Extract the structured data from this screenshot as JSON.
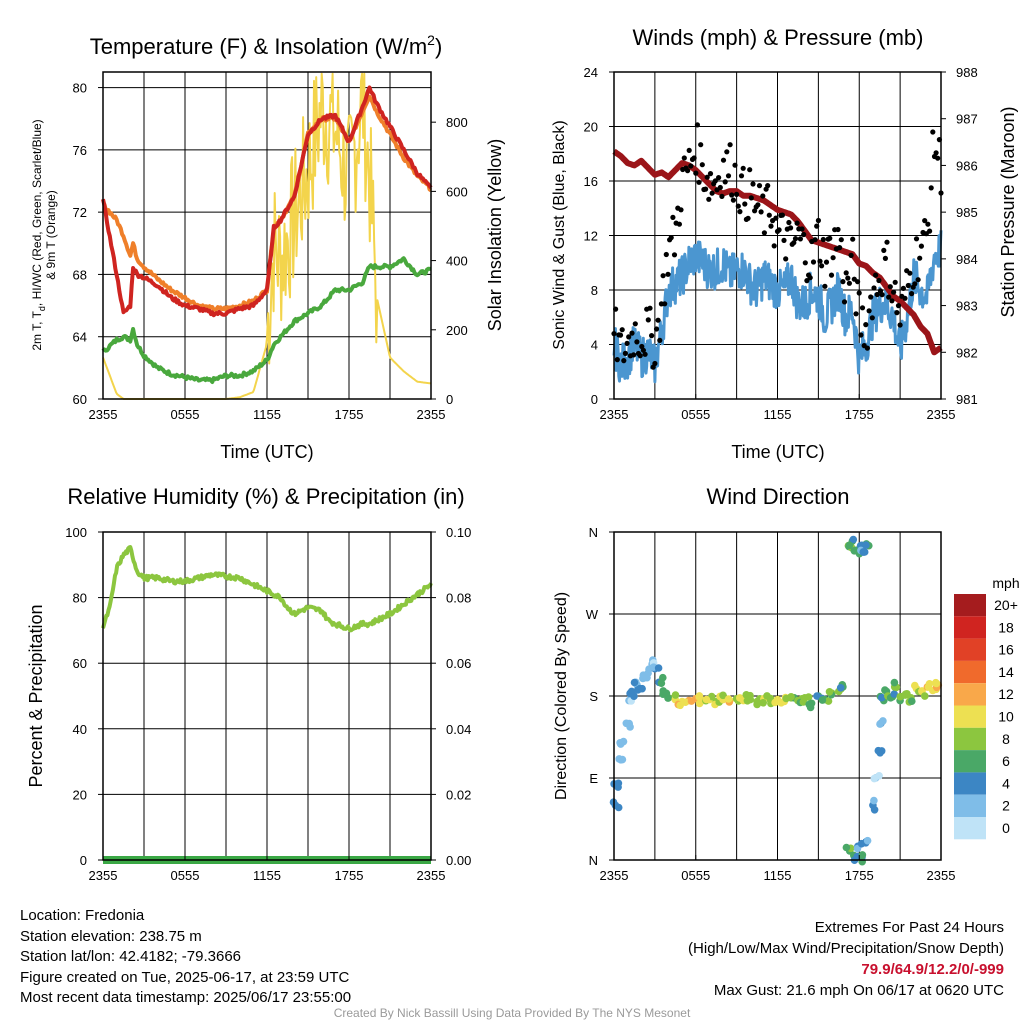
{
  "colors": {
    "temperature": "#cf2420",
    "dewpoint": "#49a83d",
    "temp_9m": "#ef7f2a",
    "insolation": "#f3d44c",
    "wind": "#4b96d0",
    "gust": "#000000",
    "pressure": "#9b1519",
    "humidity": "#8cc63f",
    "precip": "#3aa845"
  },
  "chart_data": [
    {
      "id": "temp",
      "type": "line",
      "title": "Temperature (F) & Insolation (W/m",
      "title_sup": "2",
      "title_end": ")",
      "xlabel": "Time (UTC)",
      "ylabel_line1": "2m T, T",
      "ylabel_sub": "d",
      "ylabel_line1_end": ", HI/WC (Red, Green, Scarlet/Blue)",
      "ylabel_line2": "& 9m T (Orange)",
      "ylabel_right": "Solar Insolation (Yellow)",
      "x_ticks": [
        "2355",
        "0555",
        "1155",
        "1755",
        "2355"
      ],
      "ylim": [
        60,
        81
      ],
      "y_ticks": [
        "60",
        "64",
        "68",
        "72",
        "76",
        "80"
      ],
      "ylim_right": [
        0,
        945
      ],
      "y_ticks_right": [
        "0",
        "200",
        "400",
        "600",
        "800"
      ],
      "x_hours": [
        0,
        1,
        1.5,
        2,
        2.2,
        2.5,
        3,
        4,
        5,
        6,
        7,
        8,
        9,
        10,
        11,
        12,
        12.5,
        13,
        14,
        15,
        16,
        17,
        18,
        19,
        19.5,
        20,
        21,
        22,
        23,
        24
      ],
      "series": [
        {
          "key": "temperature",
          "axis": "left",
          "values": [
            72.8,
            68,
            65.5,
            66,
            68.5,
            68,
            67.8,
            67.3,
            66.5,
            66,
            65.8,
            65.5,
            65.5,
            65.8,
            66,
            67,
            71,
            71.5,
            73,
            77,
            78,
            78.2,
            76.5,
            78.8,
            80,
            79,
            77.5,
            76,
            74.5,
            73.5
          ]
        },
        {
          "key": "dewpoint",
          "axis": "left",
          "values": [
            63,
            63.8,
            64,
            63.8,
            64.5,
            63.5,
            62.8,
            62,
            61.6,
            61.4,
            61.2,
            61.2,
            61.5,
            61.5,
            61.8,
            62.5,
            63.5,
            64,
            65,
            65.5,
            66,
            67,
            67,
            67.5,
            68.5,
            68.5,
            68.5,
            69,
            68,
            68.3
          ]
        },
        {
          "key": "temp_9m",
          "axis": "left",
          "values": [
            72.5,
            71.5,
            70.5,
            69.2,
            70,
            69,
            68.5,
            67.7,
            67,
            66.5,
            66,
            65.8,
            65.8,
            66,
            66.3,
            67,
            71,
            71.5,
            73,
            77,
            78,
            78,
            76.5,
            78.5,
            79.5,
            78.5,
            77,
            75.5,
            74.3,
            73.5
          ]
        },
        {
          "key": "insolation",
          "axis": "right",
          "values": [
            120,
            15,
            0,
            0,
            0,
            0,
            0,
            0,
            0,
            0,
            0,
            0,
            0,
            5,
            20,
            160,
            420,
            380,
            500,
            640,
            820,
            760,
            600,
            850,
            620,
            300,
            120,
            80,
            50,
            45
          ]
        }
      ]
    },
    {
      "id": "winds",
      "type": "line",
      "title": "Winds (mph) & Pressure (mb)",
      "xlabel": "Time (UTC)",
      "ylabel": "Sonic Wind & Gust (Blue, Black)",
      "ylabel_right": "Station Pressure (Maroon)",
      "x_ticks": [
        "2355",
        "0555",
        "1155",
        "1755",
        "2355"
      ],
      "ylim": [
        0,
        24
      ],
      "y_ticks": [
        "0",
        "4",
        "8",
        "12",
        "16",
        "20",
        "24"
      ],
      "ylim_right": [
        981,
        988
      ],
      "y_ticks_right": [
        "981",
        "982",
        "983",
        "984",
        "985",
        "986",
        "987",
        "988"
      ],
      "x_hours": [
        0,
        0.5,
        1,
        1.5,
        2,
        2.5,
        3,
        3.5,
        4,
        4.5,
        5,
        5.5,
        6,
        6.5,
        7,
        7.5,
        8,
        8.5,
        9,
        9.5,
        10,
        10.5,
        11,
        11.5,
        12,
        12.5,
        13,
        13.5,
        14,
        14.5,
        15,
        15.5,
        16,
        16.5,
        17,
        17.5,
        18,
        18.5,
        19,
        19.5,
        20,
        20.5,
        21,
        21.5,
        22,
        22.5,
        23,
        23.5,
        24
      ],
      "series": [
        {
          "key": "wind",
          "name": "Sonic Wind",
          "values": [
            4,
            2.5,
            3,
            4,
            3,
            3.5,
            2.5,
            5,
            8,
            8.5,
            9,
            10,
            10.5,
            10,
            9.5,
            9.5,
            10,
            9,
            9.5,
            9.5,
            8.5,
            8,
            9,
            8.5,
            8,
            8,
            9,
            7,
            7,
            8,
            7.5,
            6,
            7,
            8,
            6,
            6.5,
            3,
            4,
            6,
            7,
            7,
            6,
            3.5,
            6,
            9,
            8,
            7.5,
            10.5,
            11
          ]
        },
        {
          "key": "gust",
          "name": "Gust",
          "values": [
            5,
            3.5,
            4,
            5,
            4.5,
            5,
            4,
            7,
            11,
            12,
            16,
            17,
            18.5,
            17,
            16,
            16,
            17,
            17,
            16,
            15,
            15,
            14,
            13.5,
            14,
            12,
            12,
            11,
            12,
            11,
            10,
            12,
            10,
            11,
            12,
            8,
            10,
            6,
            5,
            8,
            9,
            10,
            8,
            6,
            8,
            10,
            11,
            12,
            19,
            17
          ]
        },
        {
          "key": "pressure",
          "name": "Pressure",
          "axis": "right",
          "values": [
            986.3,
            986.2,
            986.05,
            986.0,
            986.1,
            985.95,
            985.8,
            985.85,
            985.75,
            985.9,
            986.05,
            986.0,
            985.9,
            985.75,
            985.6,
            985.45,
            985.4,
            985.45,
            985.45,
            985.35,
            985.35,
            985.3,
            985.25,
            985.15,
            985.05,
            985.0,
            984.95,
            984.8,
            984.6,
            984.4,
            984.35,
            984.3,
            984.25,
            984.2,
            984.15,
            984.1,
            983.9,
            983.85,
            983.7,
            983.6,
            983.4,
            983.2,
            983.1,
            982.95,
            982.8,
            982.55,
            982.4,
            982.0,
            982.1
          ]
        }
      ]
    },
    {
      "id": "rh",
      "type": "line",
      "title": "Relative Humidity (%) & Precipitation (in)",
      "ylabel": "Percent & Precipitation",
      "x_ticks": [
        "2355",
        "0555",
        "1155",
        "1755",
        "2355"
      ],
      "ylim": [
        0,
        100
      ],
      "y_ticks": [
        "0",
        "20",
        "40",
        "60",
        "80",
        "100"
      ],
      "ylim_right": [
        0,
        0.1
      ],
      "y_ticks_right": [
        "0.00",
        "0.02",
        "0.04",
        "0.06",
        "0.08",
        "0.10"
      ],
      "x_hours": [
        0,
        0.5,
        1,
        1.5,
        2,
        2.5,
        3,
        4,
        5,
        6,
        7,
        8,
        9,
        10,
        11,
        12,
        13,
        13.5,
        14,
        15,
        16,
        16.5,
        17,
        18,
        19,
        19.5,
        20,
        21,
        22,
        23,
        24
      ],
      "series": [
        {
          "key": "humidity",
          "name": "Relative Humidity",
          "values": [
            71,
            77,
            89,
            93,
            95,
            88,
            86,
            86,
            85,
            85,
            86,
            87,
            86.5,
            86,
            84,
            82,
            80,
            77,
            75,
            77,
            76,
            73,
            72,
            70.5,
            72,
            72,
            73,
            75,
            78,
            81,
            84
          ]
        },
        {
          "key": "precip",
          "name": "Precipitation",
          "axis": "right",
          "values": [
            0,
            0,
            0,
            0,
            0,
            0,
            0,
            0,
            0,
            0,
            0,
            0,
            0,
            0,
            0,
            0,
            0,
            0,
            0,
            0,
            0,
            0,
            0,
            0,
            0,
            0,
            0,
            0,
            0,
            0,
            0
          ]
        }
      ]
    },
    {
      "id": "wdir",
      "type": "scatter",
      "title": "Wind Direction",
      "ylabel": "Direction (Colored By Speed)",
      "x_ticks": [
        "2355",
        "0555",
        "1155",
        "1755",
        "2355"
      ],
      "y_ticks": [
        "N",
        "E",
        "S",
        "W",
        "N"
      ],
      "ylim": [
        0,
        360
      ],
      "colorbar_title": "mph",
      "colorbar_labels": [
        "20+",
        "18",
        "16",
        "14",
        "12",
        "10",
        "8",
        "6",
        "4",
        "2",
        "0"
      ],
      "colorbar_colors": [
        "#a51c1e",
        "#d02420",
        "#e14126",
        "#f06a2c",
        "#f9a84a",
        "#ede052",
        "#8cc63f",
        "#4aa867",
        "#3c86c4",
        "#7fbde8",
        "#bfe3f7"
      ],
      "points": [
        {
          "t": 0.1,
          "dir": 60,
          "spd": 3
        },
        {
          "t": 0.3,
          "dir": 80,
          "spd": 3
        },
        {
          "t": 0.5,
          "dir": 110,
          "spd": 2
        },
        {
          "t": 0.7,
          "dir": 130,
          "spd": 2
        },
        {
          "t": 0.9,
          "dir": 150,
          "spd": 2
        },
        {
          "t": 1.1,
          "dir": 175,
          "spd": 2
        },
        {
          "t": 1.3,
          "dir": 185,
          "spd": 3
        },
        {
          "t": 1.6,
          "dir": 195,
          "spd": 2
        },
        {
          "t": 1.9,
          "dir": 188,
          "spd": 3
        },
        {
          "t": 2.2,
          "dir": 200,
          "spd": 2
        },
        {
          "t": 2.5,
          "dir": 205,
          "spd": 2
        },
        {
          "t": 2.8,
          "dir": 215,
          "spd": 2
        },
        {
          "t": 3.0,
          "dir": 210,
          "spd": 3
        },
        {
          "t": 3.3,
          "dir": 195,
          "spd": 4
        },
        {
          "t": 3.6,
          "dir": 182,
          "spd": 5
        },
        {
          "t": 4.0,
          "dir": 178,
          "spd": 7
        },
        {
          "t": 4.5,
          "dir": 176,
          "spd": 9
        },
        {
          "t": 5.0,
          "dir": 174,
          "spd": 10
        },
        {
          "t": 5.5,
          "dir": 175,
          "spd": 12
        },
        {
          "t": 6.0,
          "dir": 177,
          "spd": 11
        },
        {
          "t": 6.5,
          "dir": 175,
          "spd": 9
        },
        {
          "t": 7.0,
          "dir": 176,
          "spd": 10
        },
        {
          "t": 7.5,
          "dir": 174,
          "spd": 8
        },
        {
          "t": 8.0,
          "dir": 176,
          "spd": 9
        },
        {
          "t": 8.5,
          "dir": 175,
          "spd": 10
        },
        {
          "t": 9.0,
          "dir": 177,
          "spd": 8
        },
        {
          "t": 9.5,
          "dir": 175,
          "spd": 9
        },
        {
          "t": 10.0,
          "dir": 176,
          "spd": 8
        },
        {
          "t": 10.5,
          "dir": 174,
          "spd": 7
        },
        {
          "t": 11.0,
          "dir": 177,
          "spd": 9
        },
        {
          "t": 11.5,
          "dir": 175,
          "spd": 8
        },
        {
          "t": 12.0,
          "dir": 176,
          "spd": 10
        },
        {
          "t": 12.5,
          "dir": 174,
          "spd": 9
        },
        {
          "t": 13.0,
          "dir": 178,
          "spd": 8
        },
        {
          "t": 13.5,
          "dir": 175,
          "spd": 7
        },
        {
          "t": 14.0,
          "dir": 178,
          "spd": 8
        },
        {
          "t": 14.5,
          "dir": 172,
          "spd": 6
        },
        {
          "t": 15.0,
          "dir": 180,
          "spd": 5
        },
        {
          "t": 15.5,
          "dir": 176,
          "spd": 6
        },
        {
          "t": 16.0,
          "dir": 183,
          "spd": 7
        },
        {
          "t": 16.5,
          "dir": 185,
          "spd": 8
        },
        {
          "t": 16.8,
          "dir": 190,
          "spd": 6
        },
        {
          "t": 17.2,
          "dir": 345,
          "spd": 7
        },
        {
          "t": 17.5,
          "dir": 350,
          "spd": 6
        },
        {
          "t": 17.8,
          "dir": 340,
          "spd": 5
        },
        {
          "t": 18.1,
          "dir": 345,
          "spd": 4
        },
        {
          "t": 18.4,
          "dir": 338,
          "spd": 4
        },
        {
          "t": 18.7,
          "dir": 345,
          "spd": 5
        },
        {
          "t": 17.3,
          "dir": 10,
          "spd": 6
        },
        {
          "t": 17.6,
          "dir": 5,
          "spd": 5
        },
        {
          "t": 17.9,
          "dir": 15,
          "spd": 3
        },
        {
          "t": 18.2,
          "dir": 3,
          "spd": 4
        },
        {
          "t": 18.5,
          "dir": 20,
          "spd": 3
        },
        {
          "t": 19.0,
          "dir": 60,
          "spd": 3
        },
        {
          "t": 19.2,
          "dir": 90,
          "spd": 2
        },
        {
          "t": 19.4,
          "dir": 120,
          "spd": 3
        },
        {
          "t": 19.6,
          "dir": 150,
          "spd": 4
        },
        {
          "t": 19.8,
          "dir": 175,
          "spd": 5
        },
        {
          "t": 20.0,
          "dir": 185,
          "spd": 6
        },
        {
          "t": 20.3,
          "dir": 178,
          "spd": 5
        },
        {
          "t": 20.6,
          "dir": 190,
          "spd": 7
        },
        {
          "t": 21.0,
          "dir": 175,
          "spd": 6
        },
        {
          "t": 21.4,
          "dir": 182,
          "spd": 8
        },
        {
          "t": 21.8,
          "dir": 178,
          "spd": 7
        },
        {
          "t": 22.2,
          "dir": 188,
          "spd": 9
        },
        {
          "t": 22.6,
          "dir": 185,
          "spd": 10
        },
        {
          "t": 23.0,
          "dir": 190,
          "spd": 11
        },
        {
          "t": 23.4,
          "dir": 186,
          "spd": 10
        },
        {
          "t": 23.8,
          "dir": 192,
          "spd": 11
        }
      ]
    }
  ],
  "footer": {
    "location": "Location: Fredonia",
    "elevation": "Station elevation: 238.75 m",
    "latlon": "Station lat/lon: 42.4182; -79.3666",
    "created": "Figure created on Tue, 2025-06-17, at 23:59 UTC",
    "recent": "Most recent data timestamp: 2025/06/17 23:55:00",
    "extremes_title": "Extremes For Past 24 Hours",
    "extremes_legend": "(High/Low/Max Wind/Precipitation/Snow Depth)",
    "extremes_values": "79.9/64.9/12.2/0/-999",
    "max_gust": "Max Gust: 21.6 mph On 06/17 at 0620 UTC",
    "credit": "Created By Nick Bassill Using Data Provided By The NYS Mesonet"
  }
}
